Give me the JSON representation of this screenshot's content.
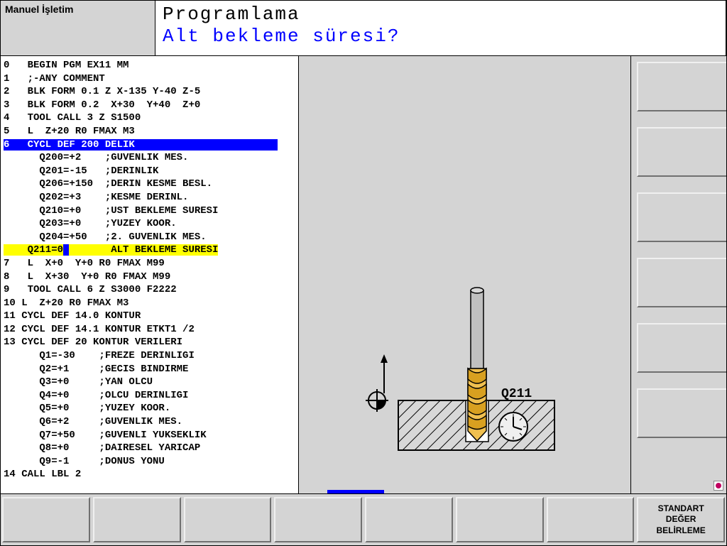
{
  "header": {
    "mode_label": "Manuel İşletim",
    "title": "Programlama",
    "subtitle": "Alt bekleme süresi?"
  },
  "colors": {
    "highlight_blue": "#0000ff",
    "highlight_yellow": "#ffff00",
    "panel_bg": "#d4d4d4",
    "white": "#ffffff",
    "subtitle_color": "#0000ff"
  },
  "program": {
    "lines": [
      {
        "n": "0",
        "text": "  BEGIN PGM EX11 MM",
        "style": "normal"
      },
      {
        "n": "1",
        "text": "  ;-ANY COMMENT",
        "style": "normal"
      },
      {
        "n": "2",
        "text": "  BLK FORM 0.1 Z X-135 Y-40 Z-5",
        "style": "normal"
      },
      {
        "n": "3",
        "text": "  BLK FORM 0.2  X+30  Y+40  Z+0",
        "style": "normal"
      },
      {
        "n": "4",
        "text": "  TOOL CALL 3 Z S1500",
        "style": "normal"
      },
      {
        "n": "5",
        "text": "  L  Z+20 R0 FMAX M3",
        "style": "normal"
      },
      {
        "n": "6",
        "text": "  CYCL DEF 200 DELIK",
        "style": "blue"
      },
      {
        "n": " ",
        "text": "    Q200=+2    ;GUVENLIK MES.",
        "style": "normal"
      },
      {
        "n": " ",
        "text": "    Q201=-15   ;DERINLIK",
        "style": "normal"
      },
      {
        "n": " ",
        "text": "    Q206=+150  ;DERIN KESME BESL.",
        "style": "normal"
      },
      {
        "n": " ",
        "text": "    Q202=+3    ;KESME DERINL.",
        "style": "normal"
      },
      {
        "n": " ",
        "text": "    Q210=+0    ;UST BEKLEME SURESI",
        "style": "normal"
      },
      {
        "n": " ",
        "text": "    Q203=+0    ;YUZEY KOOR.",
        "style": "normal"
      },
      {
        "n": " ",
        "text": "    Q204=+50   ;2. GUVENLIK MES.",
        "style": "normal"
      },
      {
        "n": " ",
        "text": "    Q211=0",
        "text2": "ALT BEKLEME SURESI",
        "style": "yellow"
      },
      {
        "n": "7",
        "text": "  L  X+0  Y+0 R0 FMAX M99",
        "style": "normal"
      },
      {
        "n": "8",
        "text": "  L  X+30  Y+0 R0 FMAX M99",
        "style": "normal"
      },
      {
        "n": "9",
        "text": "  TOOL CALL 6 Z S3000 F2222",
        "style": "normal"
      },
      {
        "n": "10",
        "text": " L  Z+20 R0 FMAX M3",
        "style": "normal"
      },
      {
        "n": "11",
        "text": " CYCL DEF 14.0 KONTUR",
        "style": "normal"
      },
      {
        "n": "12",
        "text": " CYCL DEF 14.1 KONTUR ETKT1 /2",
        "style": "normal"
      },
      {
        "n": "13",
        "text": " CYCL DEF 20 KONTUR VERILERI",
        "style": "normal"
      },
      {
        "n": " ",
        "text": "    Q1=-30    ;FREZE DERINLIGI",
        "style": "normal"
      },
      {
        "n": " ",
        "text": "    Q2=+1     ;GECIS BINDIRME",
        "style": "normal"
      },
      {
        "n": " ",
        "text": "    Q3=+0     ;YAN OLCU",
        "style": "normal"
      },
      {
        "n": " ",
        "text": "    Q4=+0     ;OLCU DERINLIGI",
        "style": "normal"
      },
      {
        "n": " ",
        "text": "    Q5=+0     ;YUZEY KOOR.",
        "style": "normal"
      },
      {
        "n": " ",
        "text": "    Q6=+2     ;GUVENLIK MES.",
        "style": "normal"
      },
      {
        "n": " ",
        "text": "    Q7=+50    ;GUVENLI YUKSEKLIK",
        "style": "normal"
      },
      {
        "n": " ",
        "text": "    Q8=+0     ;DAIRESEL YARICAP",
        "style": "normal"
      },
      {
        "n": " ",
        "text": "    Q9=-1     ;DONUS YONU",
        "style": "normal"
      },
      {
        "n": "14",
        "text": " CALL LBL 2",
        "style": "normal"
      }
    ]
  },
  "graphic": {
    "param_label": "Q211",
    "workpiece_color": "#dcdcdc",
    "hatch_color": "#000000",
    "drill_shank_color": "#c0c0c0",
    "drill_flute_light": "#f8d060",
    "drill_flute_dark": "#d8a020",
    "clock_face": "#f0f0f0",
    "clock_border": "#000000"
  },
  "softkeys_right": [
    "",
    "",
    "",
    "",
    "",
    "",
    ""
  ],
  "softkeys_bottom": {
    "keys": [
      "",
      "",
      "",
      "",
      "",
      "",
      "",
      ""
    ],
    "last_lines": [
      "STANDART",
      "DEĞER",
      "BELİRLEME"
    ]
  }
}
